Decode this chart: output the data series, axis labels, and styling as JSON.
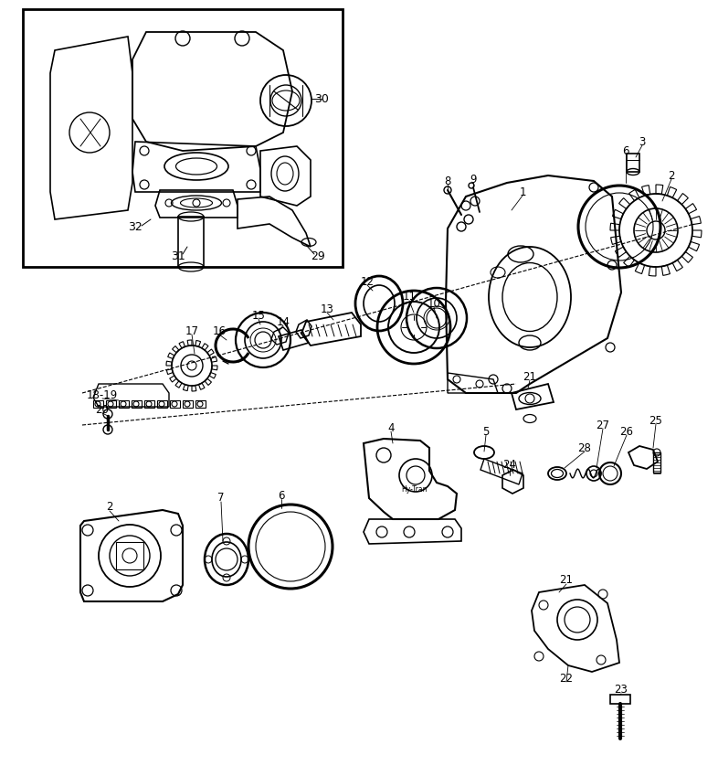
{
  "bg_color": "#ffffff",
  "line_color": "#000000",
  "figsize": [
    7.86,
    8.49
  ],
  "dpi": 100,
  "xlim": [
    0,
    786
  ],
  "ylim": [
    0,
    849
  ]
}
